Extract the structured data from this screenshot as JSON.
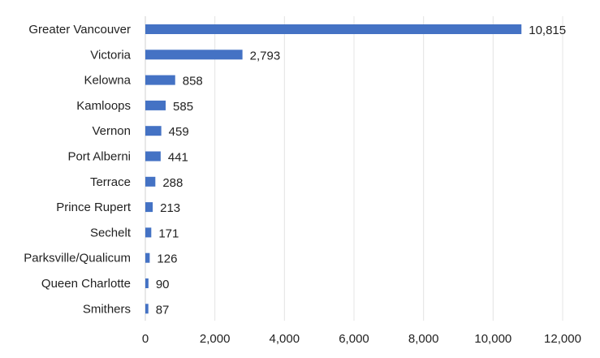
{
  "chart_data": {
    "type": "bar",
    "orientation": "horizontal",
    "categories": [
      "Greater Vancouver",
      "Victoria",
      "Kelowna",
      "Kamloops",
      "Vernon",
      "Port Alberni",
      "Terrace",
      "Prince Rupert",
      "Sechelt",
      "Parksville/Qualicum",
      "Queen Charlotte",
      "Smithers"
    ],
    "values": [
      10815,
      2793,
      858,
      585,
      459,
      441,
      288,
      213,
      171,
      126,
      90,
      87
    ],
    "value_labels": [
      "10,815",
      "2,793",
      "858",
      "585",
      "459",
      "441",
      "288",
      "213",
      "171",
      "126",
      "90",
      "87"
    ],
    "xlim": [
      0,
      12000
    ],
    "ticks": [
      0,
      2000,
      4000,
      6000,
      8000,
      10000,
      12000
    ],
    "tick_labels": [
      "0",
      "2,000",
      "4,000",
      "6,000",
      "8,000",
      "10,000",
      "12,000"
    ],
    "grid": "vertical",
    "legend": "none",
    "title": "",
    "xlabel": "",
    "ylabel": "",
    "bar_color": "#4472c4"
  }
}
